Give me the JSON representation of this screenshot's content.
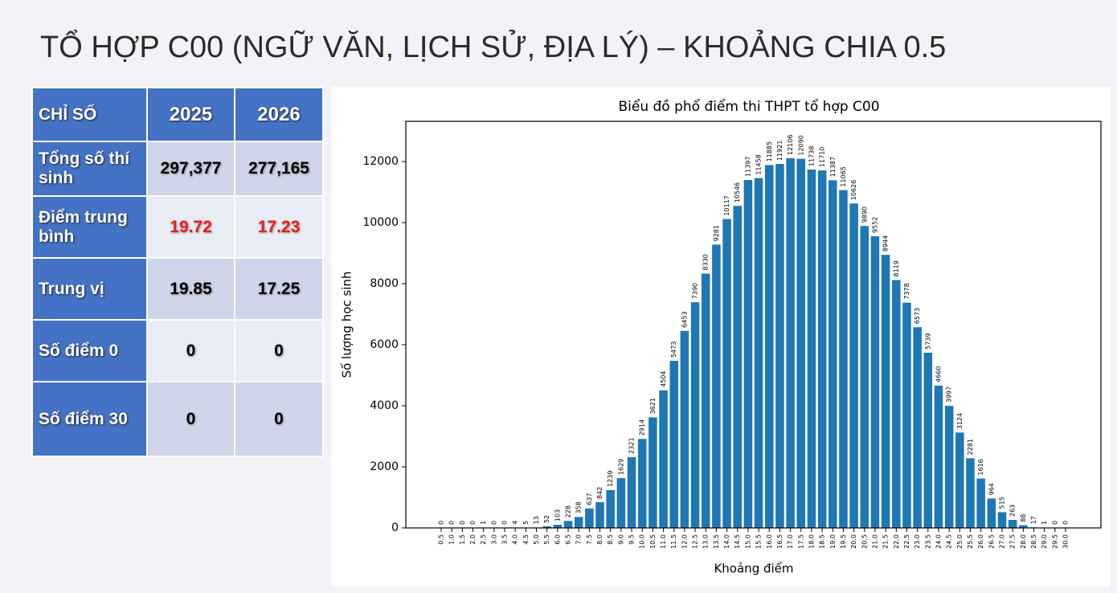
{
  "title": "TỔ HỢP C00 (NGỮ VĂN, LỊCH SỬ, ĐỊA LÝ) – KHOẢNG CHIA 0.5",
  "table": {
    "header": [
      "CHỈ SỐ",
      "2025",
      "2026"
    ],
    "rows": [
      [
        "Tổng số thí sinh",
        "297,377",
        "277,165"
      ],
      [
        "Điểm trung bình",
        "19.72",
        "17.23"
      ],
      [
        "Trung vị",
        "19.85",
        "17.25"
      ],
      [
        "Số điểm 0",
        "0",
        "0"
      ],
      [
        "Số điểm 30",
        "0",
        "0"
      ]
    ]
  },
  "chart_data": {
    "type": "bar",
    "title": "Biểu đồ phổ điểm thi THPT tổ hợp C00",
    "x_label": "Khoảng điểm",
    "y_label": "Số lượng học sinh",
    "color": "#1f77b4",
    "categories": [
      "0.5",
      "1.0",
      "1.5",
      "2.0",
      "2.5",
      "3.0",
      "3.5",
      "4.0",
      "4.5",
      "5.0",
      "5.5",
      "6.0",
      "6.5",
      "7.0",
      "7.5",
      "8.0",
      "8.5",
      "9.0",
      "9.5",
      "10.0",
      "10.5",
      "11.0",
      "11.5",
      "12.0",
      "12.5",
      "13.0",
      "13.5",
      "14.0",
      "14.5",
      "15.0",
      "15.5",
      "16.0",
      "16.5",
      "17.0",
      "17.5",
      "18.0",
      "18.5",
      "19.0",
      "19.5",
      "20.0",
      "20.5",
      "21.0",
      "21.5",
      "22.0",
      "22.5",
      "23.0",
      "23.5",
      "24.0",
      "24.5",
      "25.0",
      "25.5",
      "26.0",
      "26.5",
      "27.0",
      "27.5",
      "28.0",
      "28.5",
      "29.0",
      "29.5",
      "30.0"
    ],
    "values": [
      0,
      0,
      0,
      0,
      1,
      0,
      0,
      4,
      5,
      13,
      52,
      103,
      228,
      358,
      637,
      842,
      1239,
      1629,
      2321,
      2914,
      3621,
      4504,
      5473,
      6453,
      7390,
      8330,
      9281,
      10117,
      10546,
      11397,
      11458,
      11885,
      11921,
      12106,
      12090,
      11738,
      11710,
      11387,
      11065,
      10626,
      9890,
      9552,
      8944,
      8119,
      7378,
      6573,
      5739,
      4660,
      3997,
      3124,
      2281,
      1616,
      964,
      515,
      263,
      88,
      17,
      1,
      0,
      0
    ],
    "ylim": [
      0,
      13317
    ],
    "yticks": [
      0,
      2000,
      4000,
      6000,
      8000,
      10000,
      12000
    ]
  }
}
